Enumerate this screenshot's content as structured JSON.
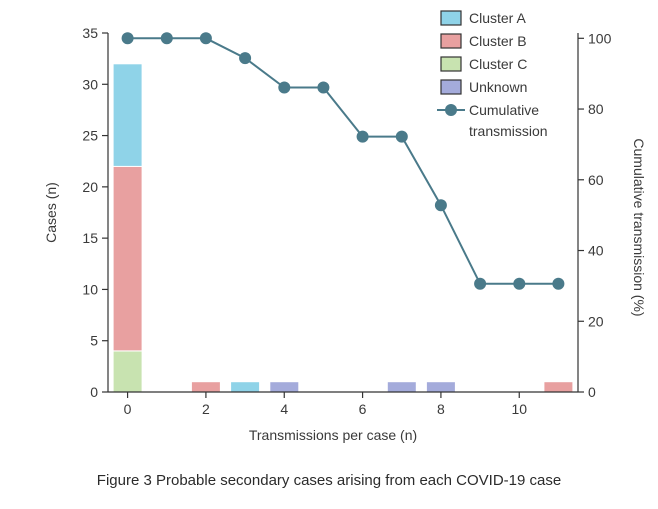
{
  "caption": "Figure 3 Probable secondary cases arising from each COVID-19 case",
  "chart_data": {
    "type": "bar",
    "xlabel": "Transmissions per case (n)",
    "ylabel": "Cases (n)",
    "y2label": "Cumulative transmission (%)",
    "xlim": [
      -0.5,
      11.5
    ],
    "ylim": [
      0,
      35
    ],
    "y2lim": [
      0,
      101.5
    ],
    "x_ticks": [
      0,
      2,
      4,
      6,
      8,
      10
    ],
    "y_ticks": [
      0,
      5,
      10,
      15,
      20,
      25,
      30,
      35
    ],
    "y2_ticks": [
      0,
      20,
      40,
      60,
      80,
      100
    ],
    "legend_position": "top-right",
    "colors": {
      "Cluster A": "#8fd3e8",
      "Cluster B": "#e8a0a0",
      "Cluster C": "#c8e3b0",
      "Unknown": "#a4abdb",
      "Cumulative transmission": "#4a7a8a",
      "axis": "#333333"
    },
    "stacked_bars": [
      {
        "x": 0,
        "segments": [
          {
            "series": "Cluster C",
            "value": 4
          },
          {
            "series": "Cluster B",
            "value": 18
          },
          {
            "series": "Cluster A",
            "value": 10
          }
        ]
      },
      {
        "x": 2,
        "segments": [
          {
            "series": "Cluster B",
            "value": 1
          }
        ]
      },
      {
        "x": 3,
        "segments": [
          {
            "series": "Cluster A",
            "value": 1
          }
        ]
      },
      {
        "x": 4,
        "segments": [
          {
            "series": "Unknown",
            "value": 1
          }
        ]
      },
      {
        "x": 7,
        "segments": [
          {
            "series": "Unknown",
            "value": 1
          }
        ]
      },
      {
        "x": 8,
        "segments": [
          {
            "series": "Unknown",
            "value": 1
          }
        ]
      },
      {
        "x": 11,
        "segments": [
          {
            "series": "Cluster B",
            "value": 1
          }
        ]
      }
    ],
    "line": {
      "name": "Cumulative transmission",
      "axis": "right",
      "x": [
        0,
        1,
        2,
        3,
        4,
        5,
        6,
        7,
        8,
        9,
        10,
        11
      ],
      "values": [
        100,
        100,
        100,
        94.4,
        86.1,
        86.1,
        72.2,
        72.2,
        52.8,
        30.6,
        30.6,
        30.6
      ]
    },
    "legend": [
      {
        "label": "Cluster A",
        "kind": "box",
        "series": "Cluster A"
      },
      {
        "label": "Cluster B",
        "kind": "box",
        "series": "Cluster B"
      },
      {
        "label": "Cluster C",
        "kind": "box",
        "series": "Cluster C"
      },
      {
        "label": "Unknown",
        "kind": "box",
        "series": "Unknown"
      },
      {
        "label": "Cumulative",
        "label2": "transmission",
        "kind": "line",
        "series": "Cumulative transmission"
      }
    ]
  }
}
